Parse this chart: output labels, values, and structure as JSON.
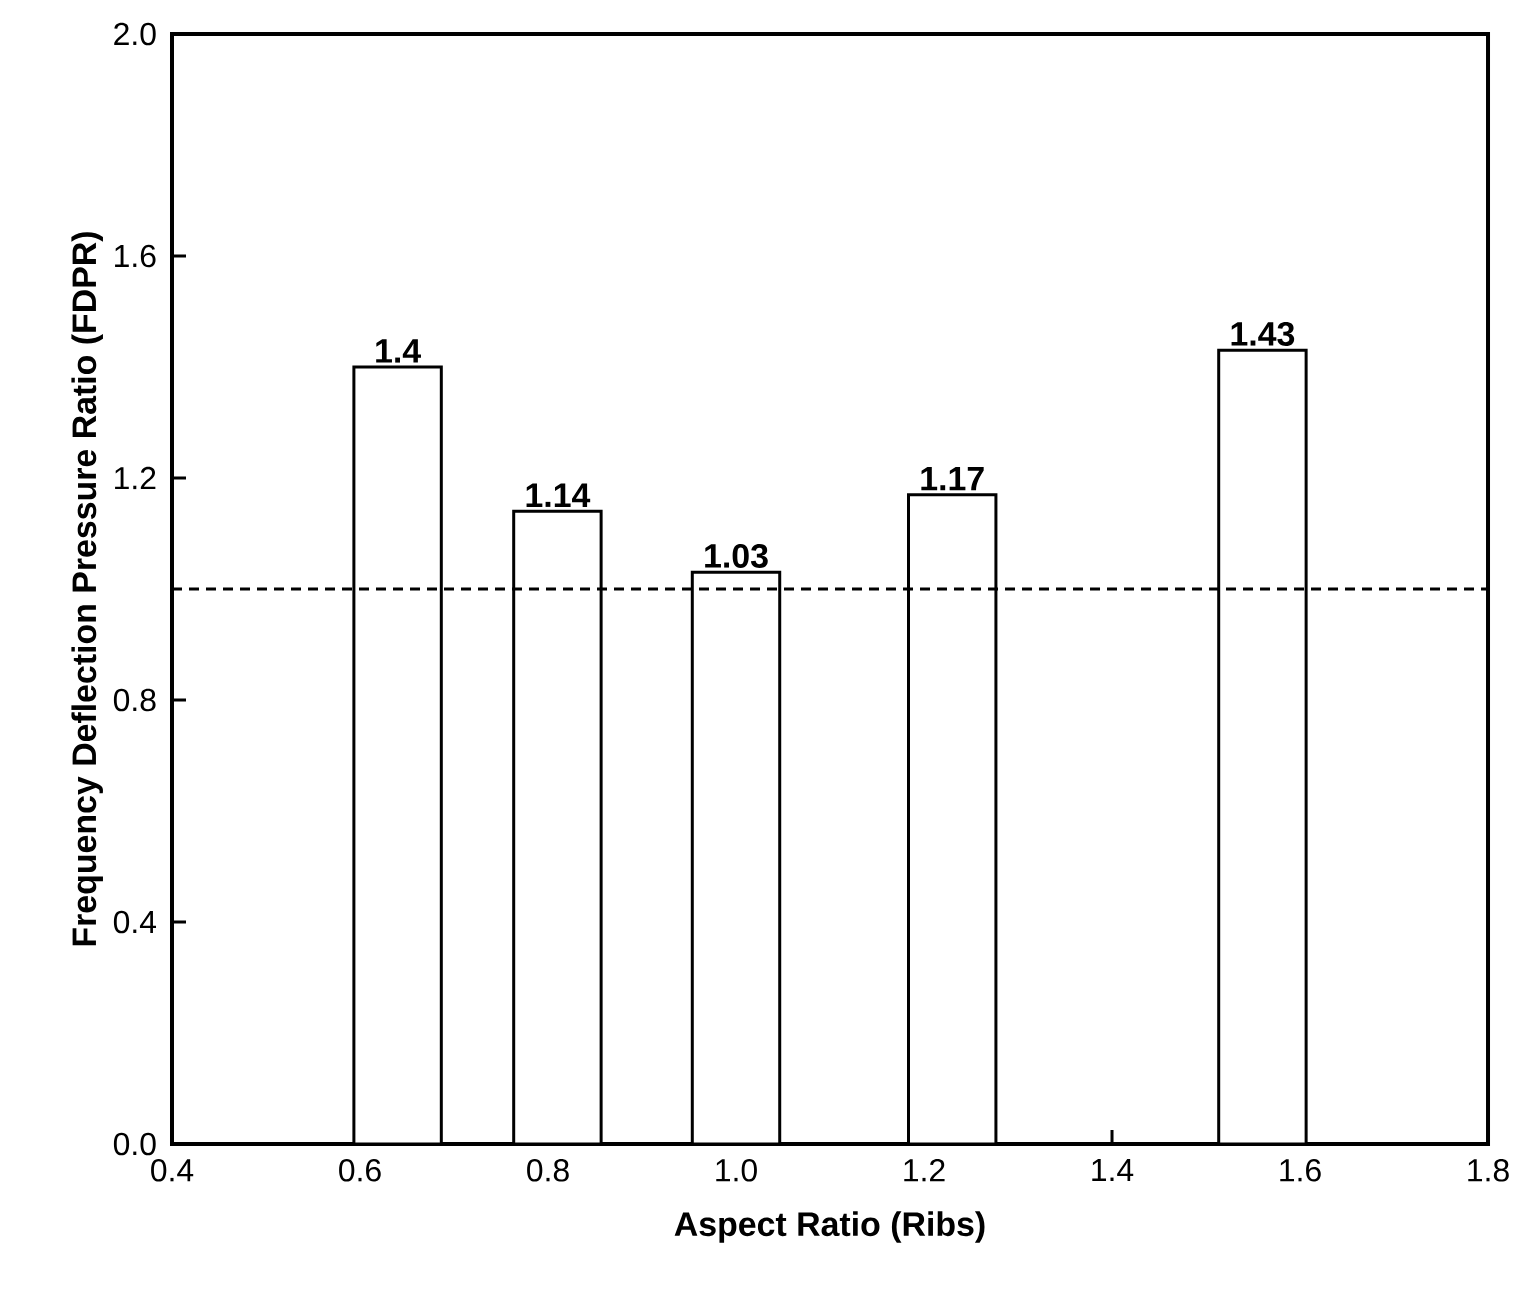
{
  "chart_data": {
    "type": "bar",
    "xlabel": "Aspect Ratio (Ribs)",
    "ylabel": "Frequency Deflection Pressure Ratio (FDPR)",
    "x": [
      0.64,
      0.81,
      1.0,
      1.23,
      1.56
    ],
    "values": [
      1.4,
      1.14,
      1.03,
      1.17,
      1.43
    ],
    "value_labels": [
      "1.4",
      "1.14",
      "1.03",
      "1.17",
      "1.43"
    ],
    "color": "#ffffff",
    "xlim": [
      0.4,
      1.8
    ],
    "xticks": [
      0.4,
      0.6,
      0.8,
      {
        "value": 1.0,
        "label": "1.0"
      },
      1.2,
      1.4,
      1.6,
      1.8
    ],
    "ylim": [
      0,
      2.0
    ],
    "yticks": [
      {
        "value": 0,
        "label": "0.0"
      },
      0.4,
      0.8,
      1.2,
      1.6,
      {
        "value": 2.0,
        "label": "2.0"
      }
    ],
    "ref_lines": [
      {
        "axis": "y",
        "value": 1.0,
        "line_style": "dashed"
      }
    ],
    "grid": false
  }
}
